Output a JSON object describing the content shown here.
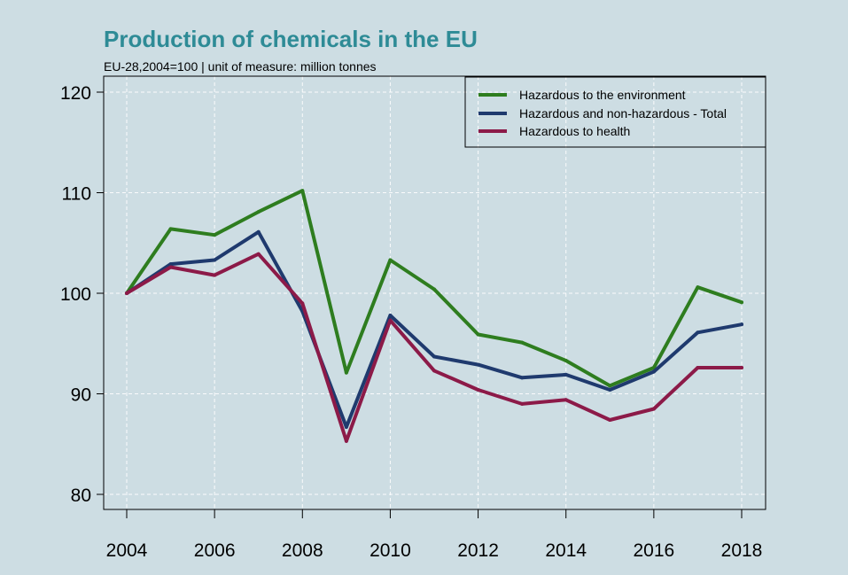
{
  "chart_data": {
    "type": "line",
    "title": "Production of chemicals in the EU",
    "subtitle": "EU-28,2004=100 | unit of measure: million tonnes",
    "x": [
      2004,
      2005,
      2006,
      2007,
      2008,
      2009,
      2010,
      2011,
      2012,
      2013,
      2014,
      2015,
      2016,
      2017,
      2018
    ],
    "xticks": [
      "2004",
      "2006",
      "2008",
      "2010",
      "2012",
      "2014",
      "2016",
      "2018"
    ],
    "yticks": [
      "80",
      "90",
      "100",
      "110",
      "120"
    ],
    "xlim": [
      2004,
      2018
    ],
    "ylim": [
      80,
      120
    ],
    "grid": true,
    "legend_position": "top-right",
    "series": [
      {
        "name": "Hazardous to the environment",
        "color": "#2e7d1f",
        "values": [
          100,
          106.4,
          105.8,
          108.1,
          110.2,
          92.1,
          103.3,
          100.4,
          95.9,
          95.1,
          93.3,
          90.8,
          92.6,
          100.6,
          99.1
        ]
      },
      {
        "name": "Hazardous and non-hazardous - Total",
        "color": "#1f3a6e",
        "values": [
          100,
          102.9,
          103.3,
          106.1,
          98.2,
          86.7,
          97.8,
          93.7,
          92.9,
          91.6,
          91.9,
          90.4,
          92.2,
          96.1,
          96.9
        ]
      },
      {
        "name": "Hazardous to health",
        "color": "#8c1a48",
        "values": [
          100,
          102.6,
          101.8,
          103.9,
          99.0,
          85.3,
          97.3,
          92.3,
          90.4,
          89.0,
          89.4,
          87.4,
          88.5,
          92.6,
          92.6
        ]
      }
    ],
    "colors": {
      "background": "#cddde3",
      "title": "#2e8b96"
    }
  }
}
